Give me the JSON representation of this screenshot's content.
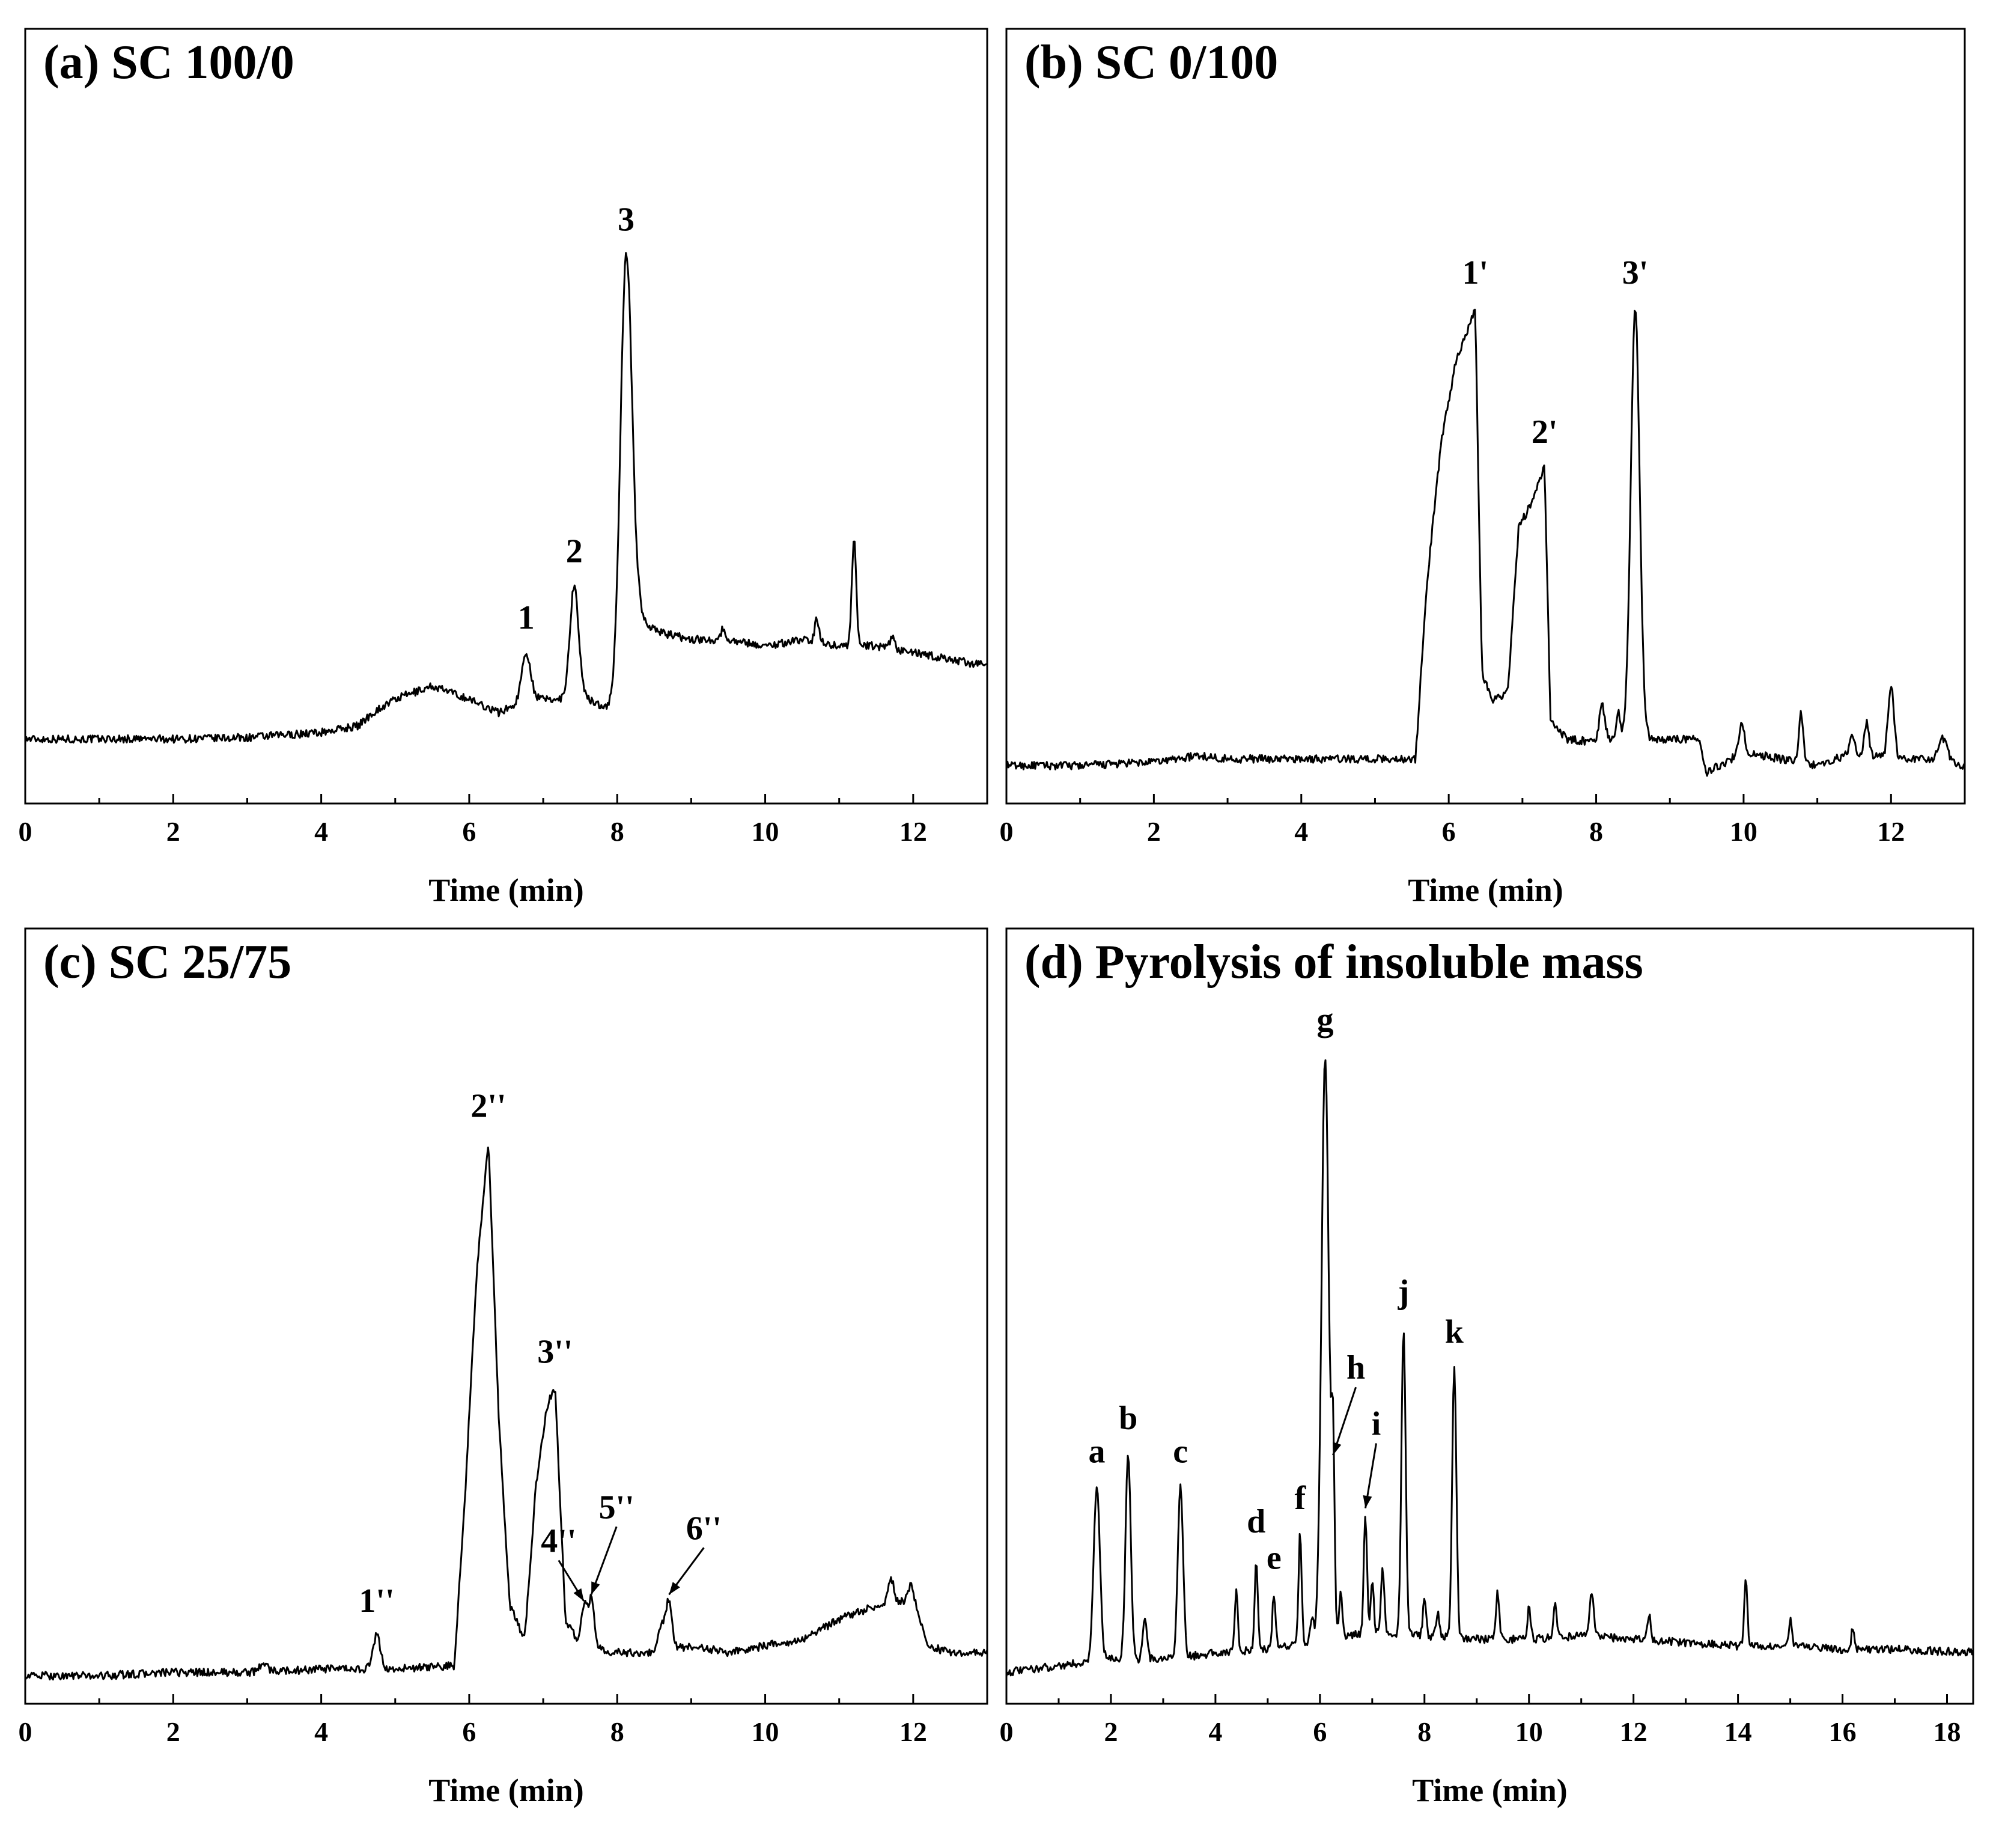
{
  "figure": {
    "line_color": "#000000",
    "background": "#ffffff"
  },
  "chart_data": [
    {
      "id": "a",
      "type": "line",
      "title": "(a) SC 100/0",
      "xlabel": "Time (min)",
      "ylabel": "",
      "xlim": [
        0,
        13
      ],
      "ylim": [
        0,
        1
      ],
      "xticks": [
        0,
        2,
        4,
        6,
        8,
        10,
        12
      ],
      "baseline": [
        [
          0,
          0.07
        ],
        [
          1,
          0.07
        ],
        [
          2,
          0.07
        ],
        [
          3,
          0.072
        ],
        [
          4,
          0.08
        ],
        [
          4.5,
          0.09
        ],
        [
          4.7,
          0.11
        ],
        [
          5,
          0.13
        ],
        [
          5.5,
          0.15
        ],
        [
          6,
          0.13
        ],
        [
          6.4,
          0.11
        ],
        [
          6.8,
          0.13
        ],
        [
          7.2,
          0.13
        ],
        [
          7.6,
          0.13
        ],
        [
          8.0,
          0.11
        ],
        [
          8.3,
          0.25
        ],
        [
          8.6,
          0.23
        ],
        [
          9,
          0.22
        ],
        [
          9.5,
          0.22
        ],
        [
          10,
          0.21
        ],
        [
          10.5,
          0.22
        ],
        [
          11,
          0.21
        ],
        [
          11.5,
          0.21
        ],
        [
          12,
          0.2
        ],
        [
          12.5,
          0.19
        ],
        [
          13,
          0.18
        ]
      ],
      "peaks": [
        {
          "x": 6.77,
          "y": 0.2,
          "w": 0.06
        },
        {
          "x": 7.42,
          "y": 0.3,
          "w": 0.06
        },
        {
          "x": 8.12,
          "y": 0.8,
          "w": 0.08
        },
        {
          "x": 9.43,
          "y": 0.235,
          "w": 0.03
        },
        {
          "x": 10.7,
          "y": 0.25,
          "w": 0.03
        },
        {
          "x": 11.2,
          "y": 0.37,
          "w": 0.03
        },
        {
          "x": 11.72,
          "y": 0.225,
          "w": 0.03
        }
      ],
      "annotations": [
        {
          "label": "1",
          "x": 6.77,
          "y": 0.2
        },
        {
          "label": "2",
          "x": 7.42,
          "y": 0.3
        },
        {
          "label": "3",
          "x": 8.12,
          "y": 0.8
        }
      ]
    },
    {
      "id": "b",
      "type": "line",
      "title": "(b) SC 0/100",
      "xlabel": "Time (min)",
      "ylabel": "",
      "xlim": [
        0,
        13
      ],
      "ylim": [
        0,
        1
      ],
      "xticks": [
        0,
        2,
        4,
        6,
        8,
        10,
        12
      ],
      "baseline": [
        [
          0,
          0.03
        ],
        [
          1,
          0.03
        ],
        [
          2,
          0.035
        ],
        [
          2.6,
          0.045
        ],
        [
          3,
          0.04
        ],
        [
          4,
          0.04
        ],
        [
          5,
          0.04
        ],
        [
          5.55,
          0.04
        ],
        [
          5.7,
          0.3
        ],
        [
          5.9,
          0.52
        ],
        [
          6.1,
          0.64
        ],
        [
          6.36,
          0.72
        ],
        [
          6.45,
          0.17
        ],
        [
          6.6,
          0.13
        ],
        [
          6.8,
          0.14
        ],
        [
          6.95,
          0.39
        ],
        [
          7.1,
          0.42
        ],
        [
          7.3,
          0.48
        ],
        [
          7.38,
          0.1
        ],
        [
          7.6,
          0.07
        ],
        [
          8,
          0.065
        ],
        [
          8.4,
          0.07
        ],
        [
          9,
          0.07
        ],
        [
          9.4,
          0.07
        ],
        [
          9.5,
          0.02
        ],
        [
          10,
          0.05
        ],
        [
          10.5,
          0.04
        ],
        [
          11,
          0.03
        ],
        [
          11.5,
          0.05
        ],
        [
          12,
          0.04
        ],
        [
          12.5,
          0.04
        ],
        [
          13,
          0.03
        ]
      ],
      "peaks": [
        {
          "x": 8.08,
          "y": 0.12,
          "w": 0.04
        },
        {
          "x": 8.3,
          "y": 0.11,
          "w": 0.03
        },
        {
          "x": 8.53,
          "y": 0.72,
          "w": 0.06
        },
        {
          "x": 9.97,
          "y": 0.09,
          "w": 0.04
        },
        {
          "x": 10.78,
          "y": 0.11,
          "w": 0.03
        },
        {
          "x": 11.47,
          "y": 0.075,
          "w": 0.03
        },
        {
          "x": 11.67,
          "y": 0.095,
          "w": 0.03
        },
        {
          "x": 12.0,
          "y": 0.15,
          "w": 0.04
        },
        {
          "x": 12.7,
          "y": 0.07,
          "w": 0.06
        }
      ],
      "annotations": [
        {
          "label": "1'",
          "x": 6.36,
          "y": 0.72
        },
        {
          "label": "2'",
          "x": 7.3,
          "y": 0.48
        },
        {
          "label": "3'",
          "x": 8.53,
          "y": 0.72
        }
      ]
    },
    {
      "id": "c",
      "type": "line",
      "title": "(c) SC 25/75",
      "xlabel": "Time (min)",
      "ylabel": "",
      "xlim": [
        0,
        13
      ],
      "ylim": [
        0,
        1
      ],
      "xticks": [
        0,
        2,
        4,
        6,
        8,
        10,
        12
      ],
      "baseline": [
        [
          0,
          0.015
        ],
        [
          1,
          0.015
        ],
        [
          2,
          0.02
        ],
        [
          3,
          0.02
        ],
        [
          4,
          0.025
        ],
        [
          4.6,
          0.025
        ],
        [
          5,
          0.025
        ],
        [
          5.8,
          0.03
        ],
        [
          5.95,
          0.3
        ],
        [
          6.1,
          0.62
        ],
        [
          6.26,
          0.82
        ],
        [
          6.4,
          0.4
        ],
        [
          6.55,
          0.12
        ],
        [
          6.75,
          0.07
        ],
        [
          6.9,
          0.3
        ],
        [
          7.05,
          0.42
        ],
        [
          7.16,
          0.45
        ],
        [
          7.3,
          0.1
        ],
        [
          7.5,
          0.06
        ],
        [
          8,
          0.05
        ],
        [
          8.5,
          0.05
        ],
        [
          9,
          0.06
        ],
        [
          9.5,
          0.05
        ],
        [
          10,
          0.06
        ],
        [
          10.5,
          0.07
        ],
        [
          11,
          0.1
        ],
        [
          11.5,
          0.12
        ],
        [
          12,
          0.13
        ],
        [
          12.2,
          0.06
        ],
        [
          12.5,
          0.05
        ],
        [
          13,
          0.05
        ]
      ],
      "peaks": [
        {
          "x": 3.22,
          "y": 0.035,
          "w": 0.05
        },
        {
          "x": 4.75,
          "y": 0.075,
          "w": 0.05
        },
        {
          "x": 7.55,
          "y": 0.12,
          "w": 0.04
        },
        {
          "x": 7.65,
          "y": 0.13,
          "w": 0.04
        },
        {
          "x": 8.6,
          "y": 0.09,
          "w": 0.04
        },
        {
          "x": 8.7,
          "y": 0.13,
          "w": 0.04
        },
        {
          "x": 11.7,
          "y": 0.16,
          "w": 0.04
        },
        {
          "x": 11.97,
          "y": 0.15,
          "w": 0.04
        }
      ],
      "annotations": [
        {
          "label": "1''",
          "x": 4.75,
          "y": 0.075
        },
        {
          "label": "2''",
          "x": 6.26,
          "y": 0.82
        },
        {
          "label": "3''",
          "x": 7.16,
          "y": 0.45
        },
        {
          "label": "4''",
          "x": 7.55,
          "y": 0.12
        },
        {
          "label": "5''",
          "x": 7.65,
          "y": 0.13
        },
        {
          "label": "6''",
          "x": 8.7,
          "y": 0.13
        }
      ]
    },
    {
      "id": "d",
      "type": "line",
      "title": "(d) Pyrolysis of insoluble mass",
      "xlabel": "Time (min)",
      "ylabel": "",
      "xlim": [
        0,
        18.5
      ],
      "ylim": [
        0,
        1
      ],
      "xticks": [
        0,
        2,
        4,
        6,
        8,
        10,
        12,
        14,
        16,
        18
      ],
      "baseline": [
        [
          0,
          0.02
        ],
        [
          1,
          0.03
        ],
        [
          1.5,
          0.035
        ],
        [
          2,
          0.04
        ],
        [
          3,
          0.04
        ],
        [
          3.6,
          0.045
        ],
        [
          4,
          0.05
        ],
        [
          5,
          0.055
        ],
        [
          6,
          0.07
        ],
        [
          7,
          0.08
        ],
        [
          8,
          0.075
        ],
        [
          9,
          0.07
        ],
        [
          10,
          0.07
        ],
        [
          11,
          0.075
        ],
        [
          12,
          0.07
        ],
        [
          13,
          0.065
        ],
        [
          14,
          0.06
        ],
        [
          15,
          0.06
        ],
        [
          16,
          0.055
        ],
        [
          17,
          0.055
        ],
        [
          18.5,
          0.05
        ]
      ],
      "peaks": [
        {
          "x": 1.73,
          "y": 0.3,
          "w": 0.06
        },
        {
          "x": 2.33,
          "y": 0.35,
          "w": 0.05
        },
        {
          "x": 2.65,
          "y": 0.1,
          "w": 0.04
        },
        {
          "x": 3.33,
          "y": 0.3,
          "w": 0.05
        },
        {
          "x": 4.4,
          "y": 0.14,
          "w": 0.03
        },
        {
          "x": 4.78,
          "y": 0.19,
          "w": 0.03
        },
        {
          "x": 5.12,
          "y": 0.14,
          "w": 0.03
        },
        {
          "x": 5.62,
          "y": 0.23,
          "w": 0.03
        },
        {
          "x": 5.85,
          "y": 0.1,
          "w": 0.03
        },
        {
          "x": 6.1,
          "y": 0.95,
          "w": 0.07
        },
        {
          "x": 6.25,
          "y": 0.34,
          "w": 0.03
        },
        {
          "x": 6.4,
          "y": 0.14,
          "w": 0.03
        },
        {
          "x": 6.87,
          "y": 0.26,
          "w": 0.03
        },
        {
          "x": 7.0,
          "y": 0.16,
          "w": 0.03
        },
        {
          "x": 7.2,
          "y": 0.18,
          "w": 0.03
        },
        {
          "x": 7.6,
          "y": 0.54,
          "w": 0.04
        },
        {
          "x": 8.0,
          "y": 0.13,
          "w": 0.03
        },
        {
          "x": 8.25,
          "y": 0.11,
          "w": 0.03
        },
        {
          "x": 8.57,
          "y": 0.48,
          "w": 0.04
        },
        {
          "x": 9.4,
          "y": 0.14,
          "w": 0.03
        },
        {
          "x": 10.0,
          "y": 0.12,
          "w": 0.03
        },
        {
          "x": 10.5,
          "y": 0.13,
          "w": 0.03
        },
        {
          "x": 11.2,
          "y": 0.14,
          "w": 0.04
        },
        {
          "x": 12.3,
          "y": 0.11,
          "w": 0.03
        },
        {
          "x": 14.15,
          "y": 0.16,
          "w": 0.03
        },
        {
          "x": 15.0,
          "y": 0.1,
          "w": 0.03
        },
        {
          "x": 16.2,
          "y": 0.09,
          "w": 0.03
        }
      ],
      "annotations": [
        {
          "label": "a",
          "x": 1.73,
          "y": 0.3
        },
        {
          "label": "b",
          "x": 2.33,
          "y": 0.35
        },
        {
          "label": "c",
          "x": 3.33,
          "y": 0.3
        },
        {
          "label": "d",
          "x": 4.78,
          "y": 0.19
        },
        {
          "label": "e",
          "x": 5.12,
          "y": 0.14
        },
        {
          "label": "f",
          "x": 5.62,
          "y": 0.23
        },
        {
          "label": "g",
          "x": 6.1,
          "y": 0.95
        },
        {
          "label": "h",
          "x": 6.25,
          "y": 0.34
        },
        {
          "label": "i",
          "x": 6.87,
          "y": 0.26
        },
        {
          "label": "j",
          "x": 7.6,
          "y": 0.54
        },
        {
          "label": "k",
          "x": 8.57,
          "y": 0.48
        }
      ]
    }
  ]
}
